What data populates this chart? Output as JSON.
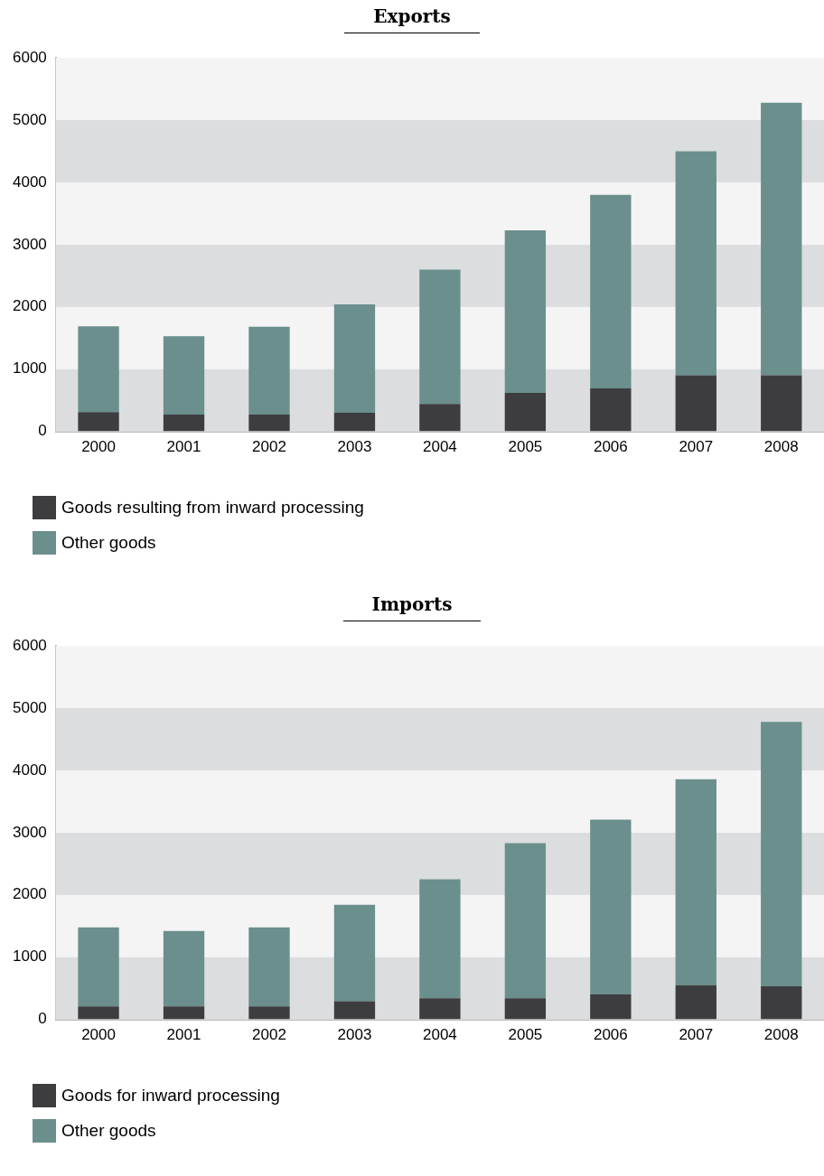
{
  "chart_data": [
    {
      "type": "bar",
      "title": "Exports",
      "categories": [
        "2000",
        "2001",
        "2002",
        "2003",
        "2004",
        "2005",
        "2006",
        "2007",
        "2008"
      ],
      "stacked": true,
      "series": [
        {
          "name": "Goods resulting from inward processing",
          "color": "#3d3d40",
          "values": [
            310,
            270,
            270,
            300,
            440,
            620,
            690,
            900,
            900
          ]
        },
        {
          "name": "Other goods",
          "color": "#6a8f8d",
          "values": [
            1380,
            1260,
            1410,
            1740,
            2160,
            2610,
            3110,
            3600,
            4380
          ]
        }
      ],
      "ylim": [
        0,
        6000
      ],
      "yticks": [
        0,
        1000,
        2000,
        3000,
        4000,
        5000,
        6000
      ],
      "legend": "bottom left",
      "bands": [
        {
          "axis": "y",
          "from": 0,
          "to": 1000,
          "color": "#dcdddf"
        },
        {
          "axis": "y",
          "from": 2000,
          "to": 3000,
          "color": "#dcdddf"
        },
        {
          "axis": "y",
          "from": 4000,
          "to": 5000,
          "color": "#dcdddf"
        }
      ]
    },
    {
      "type": "bar",
      "title": "Imports",
      "categories": [
        "2000",
        "2001",
        "2002",
        "2003",
        "2004",
        "2005",
        "2006",
        "2007",
        "2008"
      ],
      "stacked": true,
      "series": [
        {
          "name": "Goods for inward processing",
          "color": "#3d3d40",
          "values": [
            210,
            210,
            210,
            290,
            340,
            340,
            400,
            550,
            530
          ]
        },
        {
          "name": "Other goods",
          "color": "#6a8f8d",
          "values": [
            1270,
            1210,
            1270,
            1550,
            1910,
            2490,
            2810,
            3310,
            4250
          ]
        }
      ],
      "ylim": [
        0,
        6000
      ],
      "yticks": [
        0,
        1000,
        2000,
        3000,
        4000,
        5000,
        6000
      ],
      "legend": "bottom left",
      "bands": [
        {
          "axis": "y",
          "from": 0,
          "to": 1000,
          "color": "#dcdddf"
        },
        {
          "axis": "y",
          "from": 2000,
          "to": 3000,
          "color": "#dcdddf"
        },
        {
          "axis": "y",
          "from": 4000,
          "to": 5000,
          "color": "#dcdddf"
        }
      ]
    }
  ]
}
